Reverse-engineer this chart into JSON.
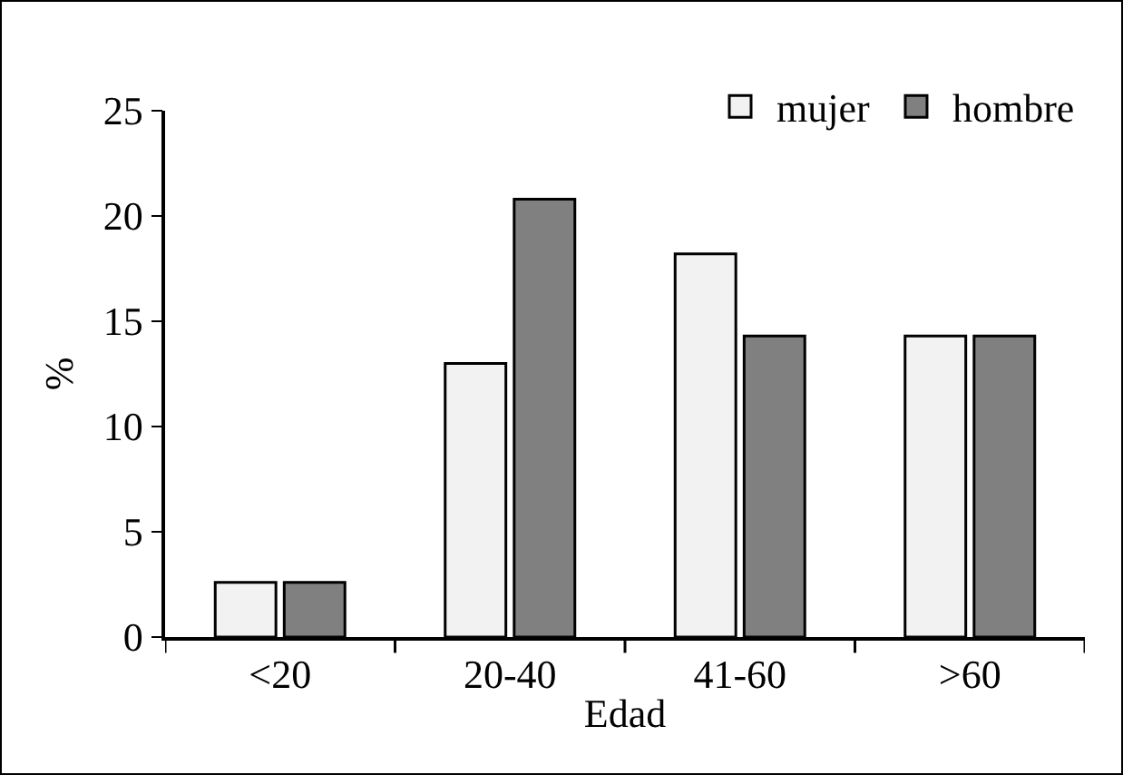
{
  "chart_data": {
    "type": "bar",
    "xlabel": "Edad",
    "ylabel": "%",
    "categories": [
      "<20",
      "20-40",
      "41-60",
      ">60"
    ],
    "series": [
      {
        "name": "mujer",
        "color": "#f2f2f2",
        "values": [
          2.6,
          13.0,
          18.2,
          14.3
        ]
      },
      {
        "name": "hombre",
        "color": "#808080",
        "values": [
          2.6,
          20.8,
          14.3,
          14.3
        ]
      }
    ],
    "ylim": [
      0,
      25
    ],
    "yticks": [
      0,
      5,
      10,
      15,
      20,
      25
    ],
    "grid": false,
    "legend": "top right"
  }
}
